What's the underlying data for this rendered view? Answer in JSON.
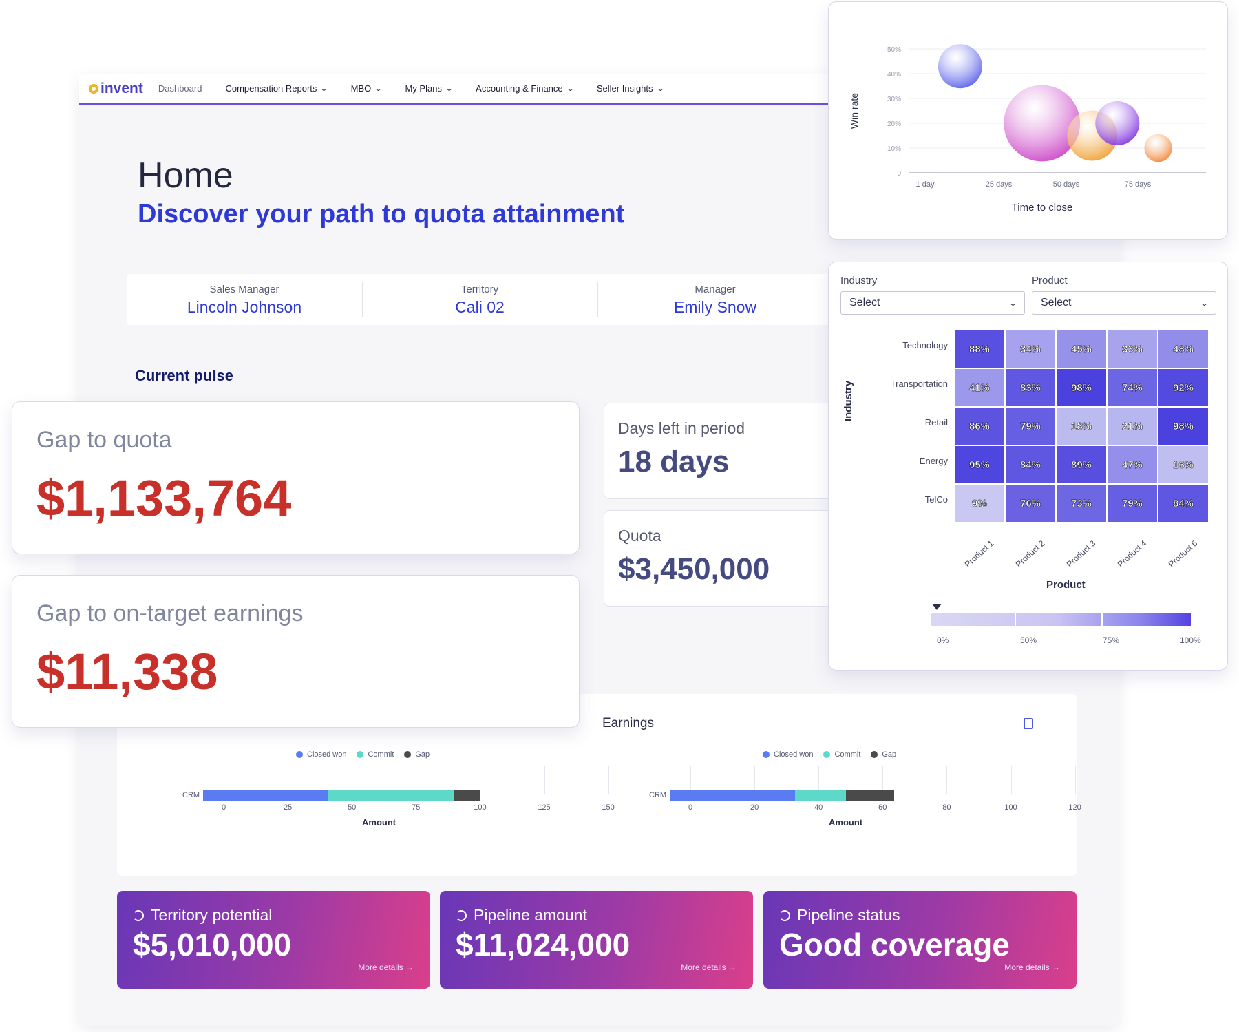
{
  "nav": {
    "logo": "invent",
    "items": [
      {
        "label": "Dashboard",
        "dropdown": false
      },
      {
        "label": "Compensation Reports",
        "dropdown": true
      },
      {
        "label": "MBO",
        "dropdown": true
      },
      {
        "label": "My Plans",
        "dropdown": true
      },
      {
        "label": "Accounting & Finance",
        "dropdown": true
      },
      {
        "label": "Seller Insights",
        "dropdown": true
      }
    ]
  },
  "header": {
    "title": "Home",
    "subtitle": "Discover your path to quota attainment"
  },
  "info": [
    {
      "label": "Sales Manager",
      "value": "Lincoln Johnson"
    },
    {
      "label": "Territory",
      "value": "Cali 02"
    },
    {
      "label": "Manager",
      "value": "Emily Snow"
    }
  ],
  "pulse_title": "Current pulse",
  "gap_quota": {
    "label": "Gap to quota",
    "value": "$1,133,764"
  },
  "gap_ote": {
    "label": "Gap to on-target earnings",
    "value": "$11,338"
  },
  "days_left": {
    "label": "Days left in period",
    "value": "18 days"
  },
  "quota": {
    "label": "Quota",
    "value": "$3,450,000"
  },
  "earnings": {
    "title": "Earnings"
  },
  "promos": [
    {
      "label": "Territory potential",
      "value": "$5,010,000",
      "more": "More details →"
    },
    {
      "label": "Pipeline amount",
      "value": "$11,024,000",
      "more": "More details →"
    },
    {
      "label": "Pipeline status",
      "value": "Good coverage",
      "more": "More details →"
    }
  ],
  "heatmap_filters": {
    "industry_label": "Industry",
    "industry_value": "Select",
    "product_label": "Product",
    "product_value": "Select"
  },
  "colors": {
    "accent": "#2e39d6",
    "red": "#c8302a",
    "nav_underline": "#6a4fe0",
    "promo_start": "#6937b7",
    "promo_end": "#da3f8a"
  },
  "chart_data": [
    {
      "type": "bar",
      "orientation": "horizontal-stacked",
      "categories": [
        "CRM"
      ],
      "series": [
        {
          "name": "Closed won",
          "values": [
            49
          ],
          "color": "#5b7cf0"
        },
        {
          "name": "Commit",
          "values": [
            49
          ],
          "color": "#5ed8c9"
        },
        {
          "name": "Gap",
          "values": [
            10
          ],
          "color": "#4a4a4a"
        }
      ],
      "xlabel": "Amount",
      "xlim": [
        0,
        150
      ],
      "xticks": [
        0,
        25,
        50,
        75,
        100,
        125,
        150
      ],
      "legend": "top"
    },
    {
      "type": "bar",
      "orientation": "horizontal-stacked",
      "categories": [
        "CRM"
      ],
      "series": [
        {
          "name": "Closed won",
          "values": [
            39
          ],
          "color": "#5b7cf0"
        },
        {
          "name": "Commit",
          "values": [
            16
          ],
          "color": "#5ed8c9"
        },
        {
          "name": "Gap",
          "values": [
            15
          ],
          "color": "#4a4a4a"
        }
      ],
      "xlabel": "Amount",
      "xlim": [
        0,
        120
      ],
      "xticks": [
        0,
        20,
        40,
        60,
        80,
        100,
        120
      ],
      "legend": "top"
    },
    {
      "type": "scatter",
      "subtype": "bubble",
      "xlabel": "Time to close",
      "ylabel": "Win rate",
      "xticks": [
        "1 day",
        "25 days",
        "50 days",
        "75 days"
      ],
      "yticks": [
        "0",
        "10%",
        "20%",
        "30%",
        "40%",
        "50%"
      ],
      "ylim": [
        0,
        50
      ],
      "points": [
        {
          "x": 14,
          "y": 43,
          "size": 1.0,
          "color": "#4f56e8"
        },
        {
          "x": 40,
          "y": 20,
          "size": 3.0,
          "color": "#c83bc4"
        },
        {
          "x": 56,
          "y": 15,
          "size": 1.3,
          "color": "#f09a26"
        },
        {
          "x": 64,
          "y": 20,
          "size": 1.0,
          "color": "#7b2ae0"
        },
        {
          "x": 77,
          "y": 10,
          "size": 0.4,
          "color": "#f07e2a"
        }
      ]
    },
    {
      "type": "heatmap",
      "xlabel": "Product",
      "ylabel": "Industry",
      "rows": [
        "Technology",
        "Transportation",
        "Retail",
        "Energy",
        "TelCo"
      ],
      "cols": [
        "Product 1",
        "Product 2",
        "Product 3",
        "Product 4",
        "Product 5"
      ],
      "values": [
        [
          "88%",
          "34%",
          "45%",
          "33%",
          "48%"
        ],
        [
          "41%",
          "83%",
          "98%",
          "74%",
          "92%"
        ],
        [
          "86%",
          "79%",
          "18%",
          "21%",
          "98%"
        ],
        [
          "95%",
          "84%",
          "89%",
          "47%",
          "16%"
        ],
        [
          "9%",
          "76%",
          "73%",
          "79%",
          "84%"
        ]
      ],
      "colorbar": {
        "ticks": [
          "0%",
          "50%",
          "75%",
          "100%"
        ]
      }
    }
  ]
}
